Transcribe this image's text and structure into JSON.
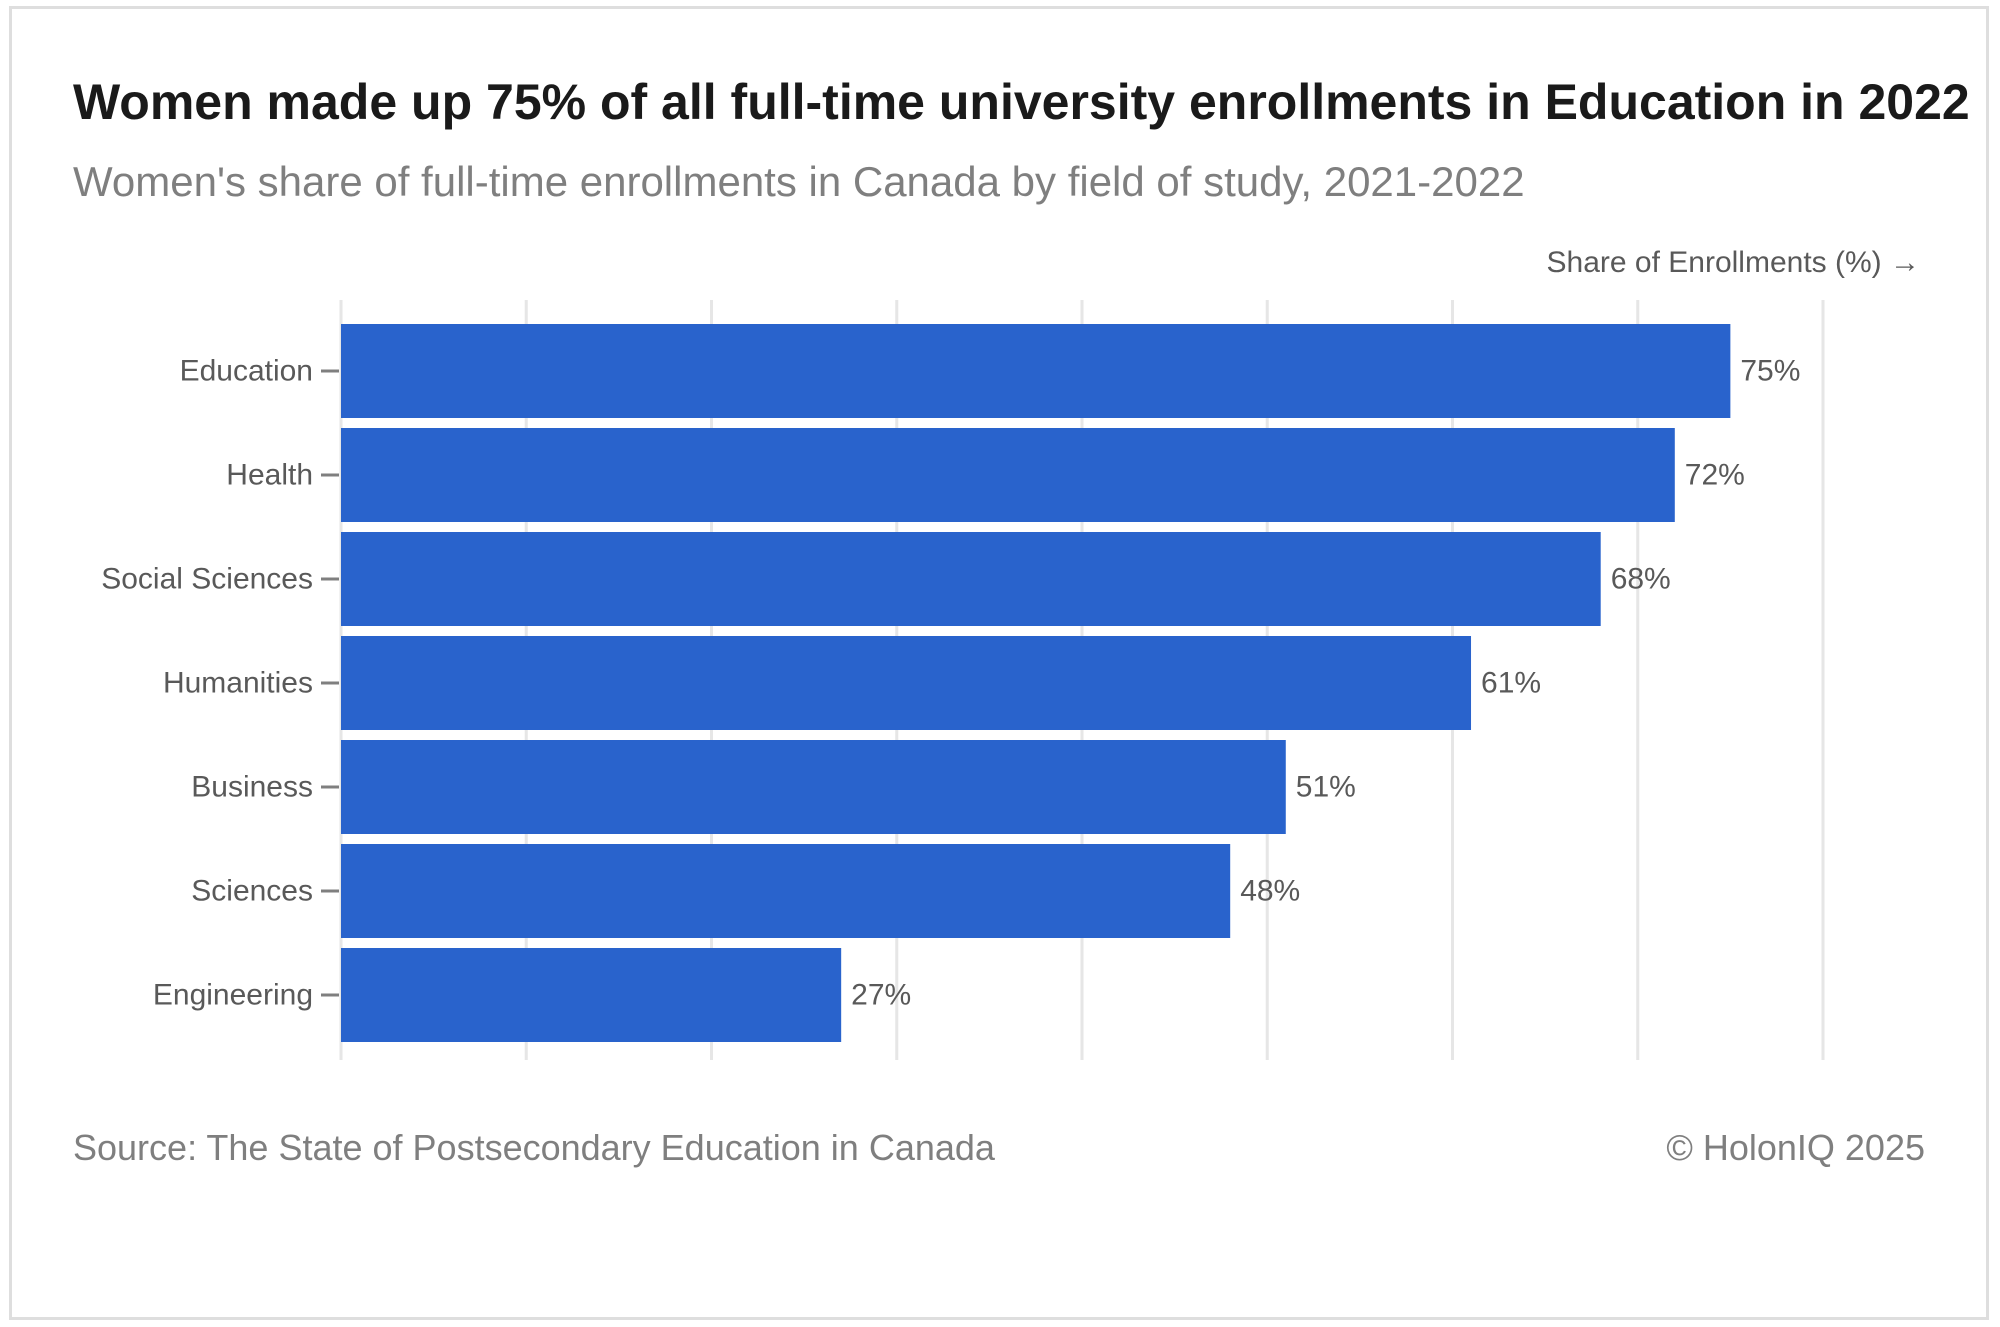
{
  "header": {
    "title": "Women made up 75% of all full-time university enrollments in Education in 2022",
    "subtitle": "Women's share of full-time enrollments in Canada by field of study, 2021-2022"
  },
  "footer": {
    "source": "Source: The State of Postsecondary Education in Canada",
    "copyright": "© HolonIQ 2025"
  },
  "colors": {
    "bar": "#2963cc",
    "grid": "#e6e6e6",
    "label": "#595959"
  },
  "chart_data": {
    "type": "bar",
    "orientation": "horizontal",
    "title": "Women made up 75% of all full-time university enrollments in Education in 2022",
    "subtitle": "Women's share of full-time enrollments in Canada by field of study, 2021-2022",
    "xlabel": "Share of Enrollments (%) →",
    "ylabel": "",
    "categories": [
      "Education",
      "Health",
      "Social Sciences",
      "Humanities",
      "Business",
      "Sciences",
      "Engineering"
    ],
    "values": [
      75,
      72,
      68,
      61,
      51,
      48,
      27
    ],
    "data_labels": [
      "75%",
      "72%",
      "68%",
      "61%",
      "51%",
      "48%",
      "27%"
    ],
    "xlim": [
      0,
      80
    ],
    "grid": true,
    "legend": "none"
  }
}
